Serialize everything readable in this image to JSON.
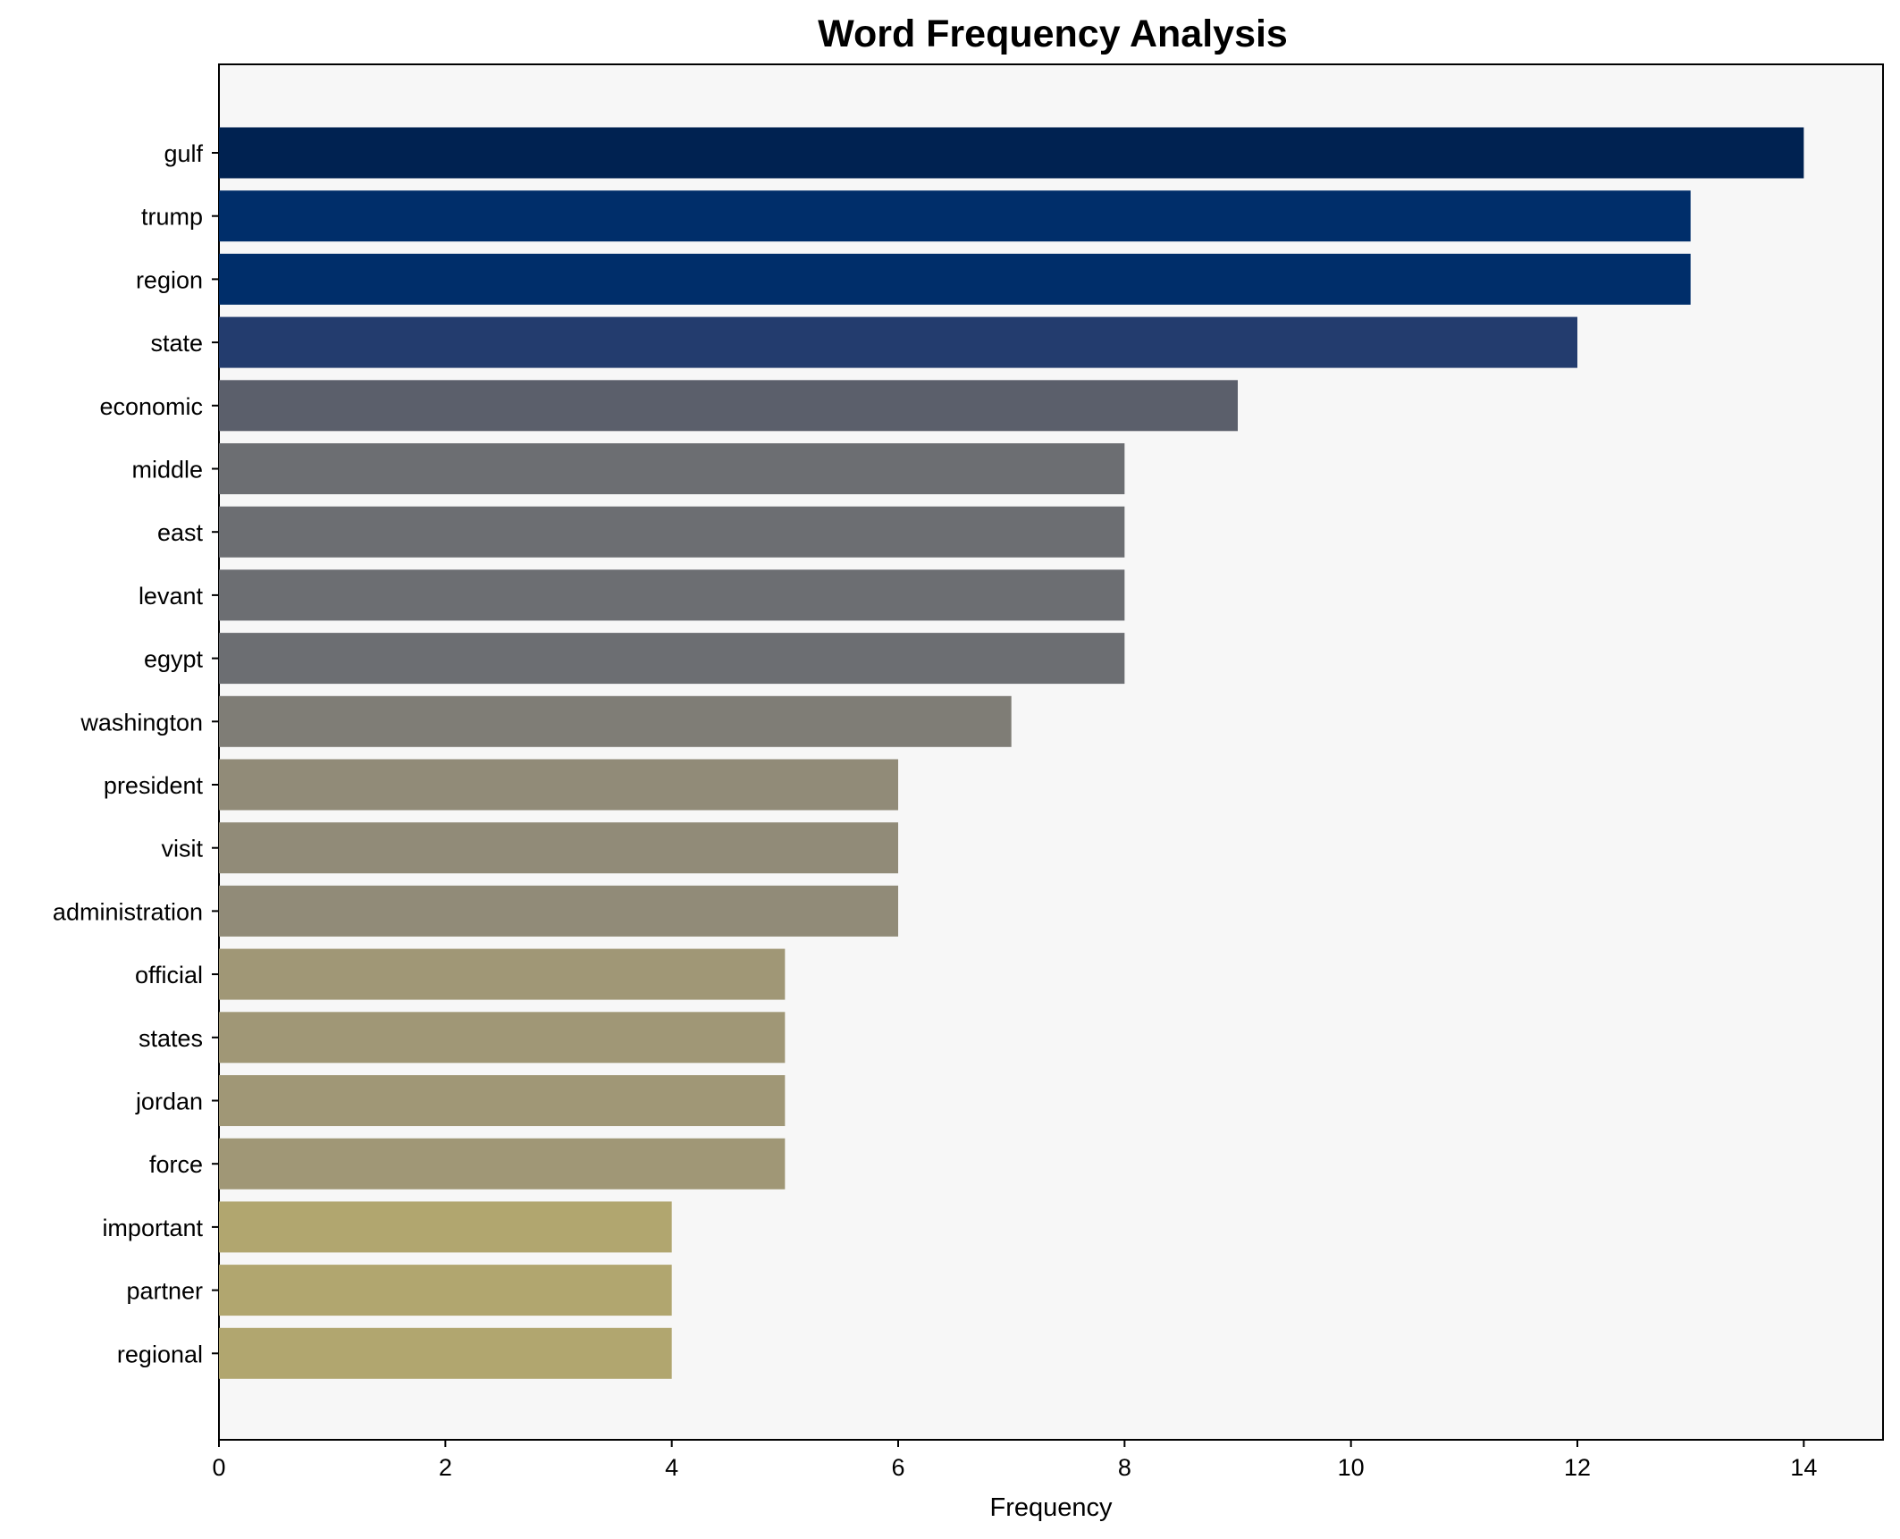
{
  "chart_data": {
    "type": "bar",
    "orientation": "horizontal",
    "title": "Word Frequency Analysis",
    "xlabel": "Frequency",
    "ylabel": "",
    "xlim": [
      0,
      14.7
    ],
    "xticks": [
      0,
      2,
      4,
      6,
      8,
      10,
      12,
      14
    ],
    "grid": false,
    "categories": [
      "gulf",
      "trump",
      "region",
      "state",
      "economic",
      "middle",
      "east",
      "levant",
      "egypt",
      "washington",
      "president",
      "visit",
      "administration",
      "official",
      "states",
      "jordan",
      "force",
      "important",
      "partner",
      "regional"
    ],
    "values": [
      14,
      13,
      13,
      12,
      9,
      8,
      8,
      8,
      8,
      7,
      6,
      6,
      6,
      5,
      5,
      5,
      5,
      4,
      4,
      4
    ],
    "colors": [
      "#002251",
      "#002e6a",
      "#002e6a",
      "#233c6e",
      "#5b5f6b",
      "#6c6e72",
      "#6c6e72",
      "#6c6e72",
      "#6c6e72",
      "#7f7d76",
      "#918b78",
      "#918b78",
      "#918b78",
      "#a09776",
      "#a09776",
      "#a09776",
      "#a09776",
      "#b1a66f",
      "#b1a66f",
      "#b1a66f"
    ],
    "plot_background": "#f7f7f7"
  }
}
